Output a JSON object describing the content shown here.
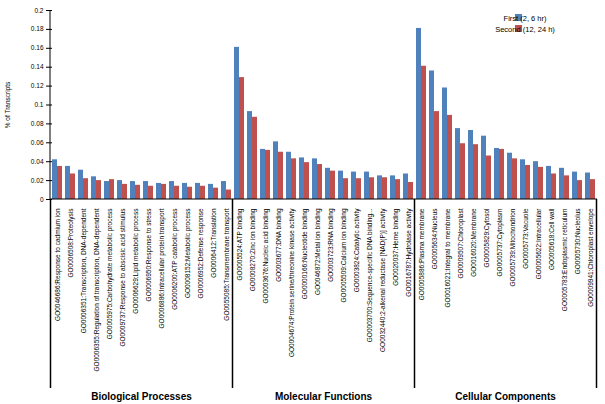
{
  "chart_data": {
    "type": "bar",
    "ylabel": "% of Transcripts",
    "ylim": [
      0,
      0.2
    ],
    "yticks": [
      0,
      0.02,
      0.04,
      0.06,
      0.08,
      0.1,
      0.12,
      0.14,
      0.16,
      0.18,
      0.2
    ],
    "grid": false,
    "legend": "top-right",
    "categories": [
      "GO0046686:Response to cadmium ion",
      "GO0006508:Proteolysis",
      "GO0006351:Transcription, DNA-dependent",
      "GO0006355:Regulation of transcription, DNA-dependent",
      "GO0005975:Carbohydrate metabolic process",
      "GO0009737:Response to abscisic acid stimulus",
      "GO0006629:Lipid metabolic process",
      "GO0006950:Response to stress",
      "GO0006886:Intracellular protein transport",
      "GO0006200:ATP catabolic process",
      "GO0008152:Metabolic process",
      "GO0006952:Defense response",
      "GO0006412:Translation",
      "GO0055085:Transmembrane transport",
      "GO0005524:ATP binding",
      "GO0008270:Zinc ion binding",
      "GO0003676:Nucleic acid binding",
      "GO0003677:DNA binding",
      "GO0004674:Protein serine/threonine kinase activity",
      "GO0000166:Nucleotide binding",
      "GO0046872:Metal ion binding",
      "GO0003723:RNA binding",
      "GO0005509:Calcium ion binding",
      "GO0003824:Catalytic activity",
      "GO0003700:Sequence-specific DNA binding...",
      "GO0032440:2-alkenal reductase [NAD(P)] activity",
      "GO0020037:Heme binding",
      "GO0016787:Hydrolase activity",
      "GO0005886:Plasma membrane",
      "GO0005634:Nucleus",
      "GO0016021:Integral to membrane",
      "GO0009507:Chloroplast",
      "GO0016020:Membrane",
      "GO0005829:Cytosol",
      "GO0005737:Cytoplasm",
      "GO0005739:Mitochondrion",
      "GO0005773:Vacuole",
      "GO0005622:Intracellular",
      "GO0005618:Cell wall",
      "GO0005783:Endoplasmic reticulum",
      "GO0005730:Nucleolus",
      "GO0009941:Chloroplast envelope"
    ],
    "category_groups": [
      "Biological Processes",
      "Biological Processes",
      "Biological Processes",
      "Biological Processes",
      "Biological Processes",
      "Biological Processes",
      "Biological Processes",
      "Biological Processes",
      "Biological Processes",
      "Biological Processes",
      "Biological Processes",
      "Biological Processes",
      "Biological Processes",
      "Biological Processes",
      "Molecular Functions",
      "Molecular Functions",
      "Molecular Functions",
      "Molecular Functions",
      "Molecular Functions",
      "Molecular Functions",
      "Molecular Functions",
      "Molecular Functions",
      "Molecular Functions",
      "Molecular Functions",
      "Molecular Functions",
      "Molecular Functions",
      "Molecular Functions",
      "Molecular Functions",
      "Cellular Components",
      "Cellular Components",
      "Cellular Components",
      "Cellular Components",
      "Cellular Components",
      "Cellular Components",
      "Cellular Components",
      "Cellular Components",
      "Cellular Components",
      "Cellular Components",
      "Cellular Components",
      "Cellular Components",
      "Cellular Components",
      "Cellular Components"
    ],
    "series": [
      {
        "name": "First (2, 6 hr)",
        "color": "#4f81bd",
        "values": [
          0.042,
          0.035,
          0.031,
          0.024,
          0.019,
          0.02,
          0.019,
          0.019,
          0.017,
          0.019,
          0.017,
          0.017,
          0.016,
          0.019,
          0.161,
          0.093,
          0.053,
          0.061,
          0.05,
          0.044,
          0.043,
          0.033,
          0.03,
          0.029,
          0.029,
          0.025,
          0.025,
          0.027,
          0.181,
          0.136,
          0.118,
          0.075,
          0.073,
          0.067,
          0.054,
          0.049,
          0.042,
          0.04,
          0.035,
          0.033,
          0.029,
          0.028
        ]
      },
      {
        "name": "Second (12, 24 h)",
        "color": "#c0504d",
        "values": [
          0.035,
          0.027,
          0.022,
          0.02,
          0.021,
          0.016,
          0.015,
          0.014,
          0.016,
          0.014,
          0.013,
          0.014,
          0.012,
          0.01,
          0.129,
          0.087,
          0.052,
          0.05,
          0.043,
          0.039,
          0.037,
          0.03,
          0.022,
          0.022,
          0.023,
          0.023,
          0.021,
          0.018,
          0.141,
          0.093,
          0.089,
          0.059,
          0.058,
          0.046,
          0.053,
          0.043,
          0.036,
          0.034,
          0.027,
          0.025,
          0.02,
          0.021
        ]
      }
    ]
  }
}
